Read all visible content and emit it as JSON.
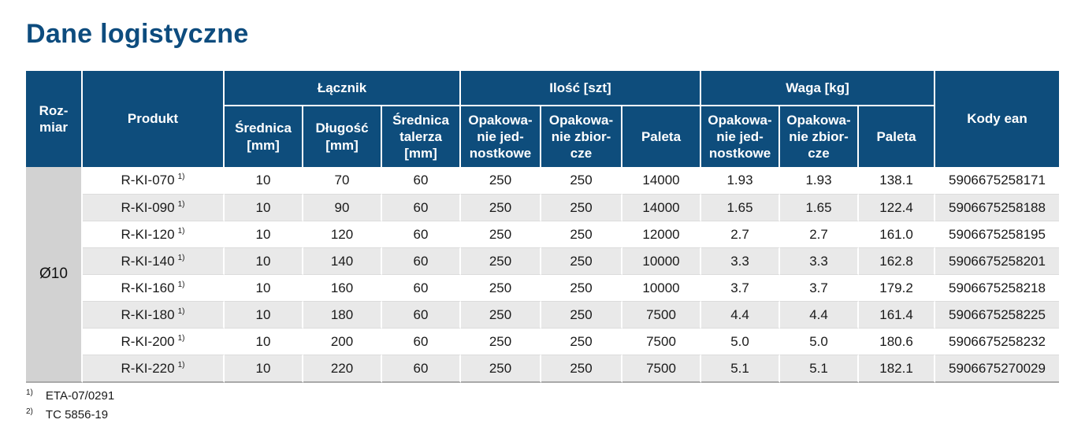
{
  "page": {
    "title": "Dane logistyczne"
  },
  "colors": {
    "header_bg": "#0e4d7c",
    "title_text": "#0d4c7e",
    "row_alt_bg": "#e9e9e9",
    "size_cell_bg": "#d2d2d2",
    "body_text": "#1a1a1a"
  },
  "table": {
    "header": {
      "rozmiar": "Roz-\nmiar",
      "produkt": "Produkt",
      "kody_ean": "Kody ean",
      "groups": [
        {
          "label": "Łącznik"
        },
        {
          "label": "Ilość [szt]"
        },
        {
          "label": "Waga [kg]"
        }
      ],
      "subheaders": [
        "Średnica\n[mm]",
        "Długość\n[mm]",
        "Średnica\ntalerza\n[mm]",
        "Opakowa-\nnie jed-\nnostkowe",
        "Opakowa-\nnie zbior-\ncze",
        "Paleta",
        "Opakowa-\nnie jed-\nnostkowe",
        "Opakowa-\nnie zbior-\ncze",
        "Paleta"
      ]
    },
    "size_group": "Ø10",
    "rows": [
      {
        "product": "R-KI-070",
        "footnote_marker": "1)",
        "values": [
          "10",
          "70",
          "60",
          "250",
          "250",
          "14000",
          "1.93",
          "1.93",
          "138.1",
          "5906675258171"
        ]
      },
      {
        "product": "R-KI-090",
        "footnote_marker": "1)",
        "values": [
          "10",
          "90",
          "60",
          "250",
          "250",
          "14000",
          "1.65",
          "1.65",
          "122.4",
          "5906675258188"
        ]
      },
      {
        "product": "R-KI-120",
        "footnote_marker": "1)",
        "values": [
          "10",
          "120",
          "60",
          "250",
          "250",
          "12000",
          "2.7",
          "2.7",
          "161.0",
          "5906675258195"
        ]
      },
      {
        "product": "R-KI-140",
        "footnote_marker": "1)",
        "values": [
          "10",
          "140",
          "60",
          "250",
          "250",
          "10000",
          "3.3",
          "3.3",
          "162.8",
          "5906675258201"
        ]
      },
      {
        "product": "R-KI-160",
        "footnote_marker": "1)",
        "values": [
          "10",
          "160",
          "60",
          "250",
          "250",
          "10000",
          "3.7",
          "3.7",
          "179.2",
          "5906675258218"
        ]
      },
      {
        "product": "R-KI-180",
        "footnote_marker": "1)",
        "values": [
          "10",
          "180",
          "60",
          "250",
          "250",
          "7500",
          "4.4",
          "4.4",
          "161.4",
          "5906675258225"
        ]
      },
      {
        "product": "R-KI-200",
        "footnote_marker": "1)",
        "values": [
          "10",
          "200",
          "60",
          "250",
          "250",
          "7500",
          "5.0",
          "5.0",
          "180.6",
          "5906675258232"
        ]
      },
      {
        "product": "R-KI-220",
        "footnote_marker": "1)",
        "values": [
          "10",
          "220",
          "60",
          "250",
          "250",
          "7500",
          "5.1",
          "5.1",
          "182.1",
          "5906675270029"
        ]
      }
    ],
    "column_names": [
      "srednica-mm",
      "dlugosc-mm",
      "srednica-talerza-mm",
      "ilosc-opakowanie-jednostkowe",
      "ilosc-opakowanie-zbiorcze",
      "ilosc-paleta",
      "waga-opakowanie-jednostkowe",
      "waga-opakowanie-zbiorcze",
      "waga-paleta",
      "kody-ean"
    ]
  },
  "footnotes": [
    {
      "marker": "1)",
      "text": "ETA-07/0291"
    },
    {
      "marker": "2)",
      "text": "TC 5856-19"
    }
  ]
}
